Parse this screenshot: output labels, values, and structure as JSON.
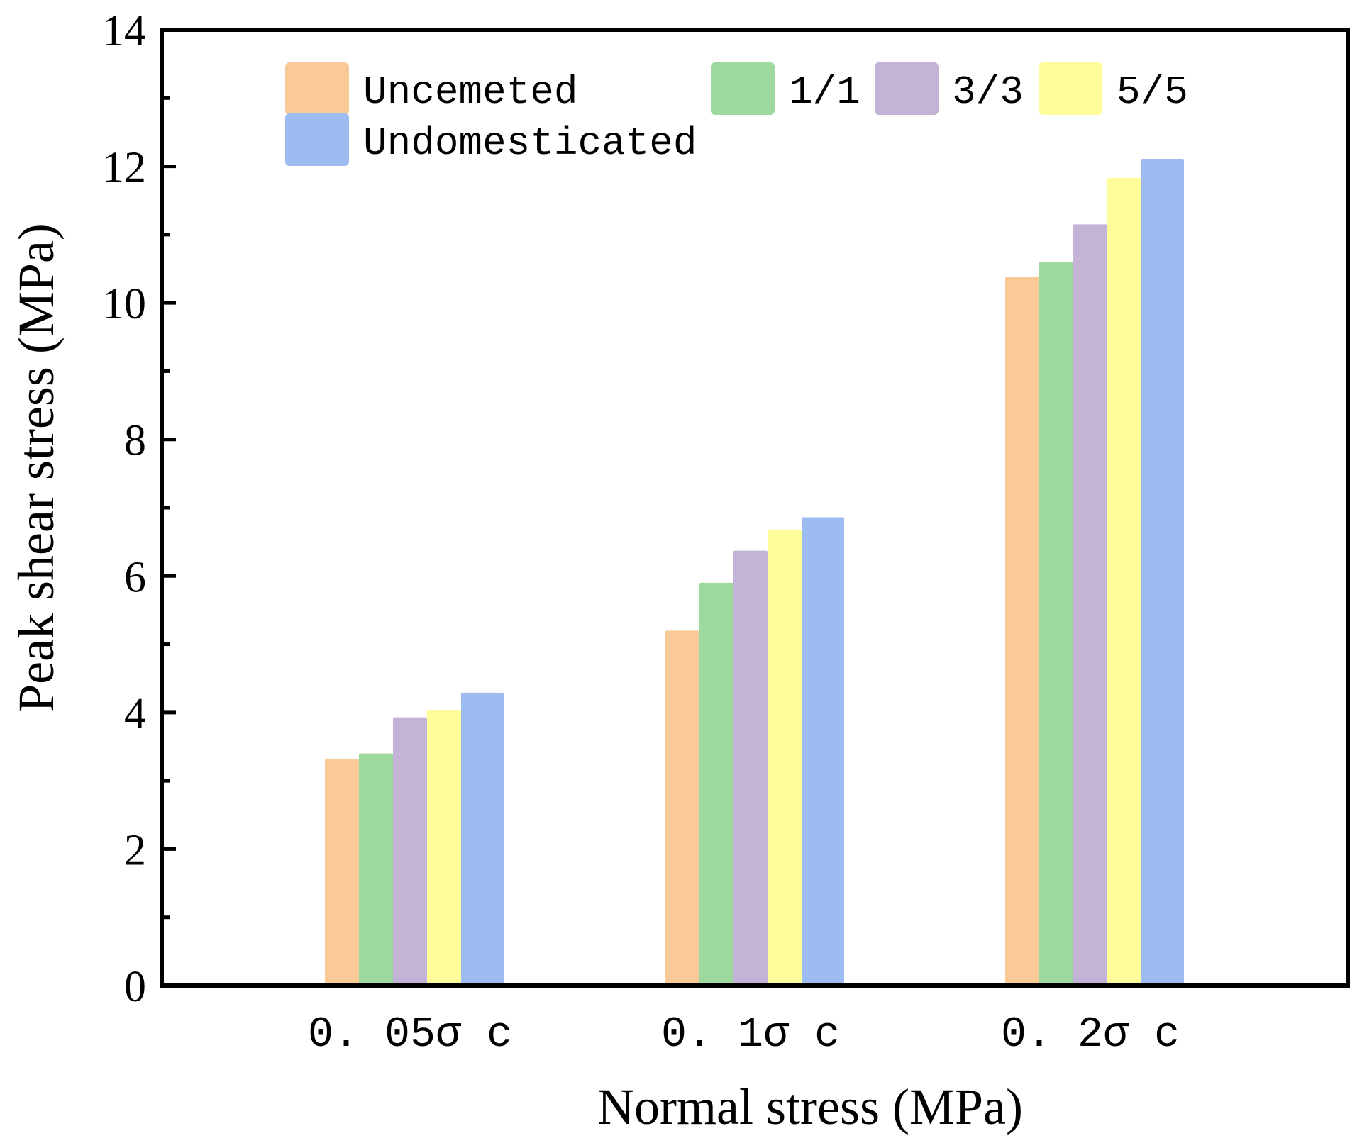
{
  "chart_data": {
    "type": "bar",
    "title": "",
    "xlabel": "Normal stress (MPa)",
    "ylabel": "Peak shear stress (MPa)",
    "ylim": [
      0,
      14
    ],
    "yticks": [
      0,
      2,
      4,
      6,
      8,
      10,
      12,
      14
    ],
    "categories": [
      "0.05σc",
      "0.1σc",
      "0.2σc"
    ],
    "category_labels": [
      "0. 05σ c",
      "0. 1σ c",
      "0. 2σ c"
    ],
    "series": [
      {
        "name": "Uncemeted",
        "color": "#F9C998",
        "values": [
          3.32,
          5.2,
          10.38
        ]
      },
      {
        "name": "1/1",
        "color": "#9DD89C",
        "values": [
          3.4,
          5.9,
          10.6
        ]
      },
      {
        "name": "3/3",
        "color": "#C2B3D7",
        "values": [
          3.93,
          6.37,
          11.15
        ]
      },
      {
        "name": "5/5",
        "color": "#FFFD9A",
        "values": [
          4.04,
          6.68,
          11.83
        ]
      },
      {
        "name": "Undomesticated",
        "color": "#9DBCF2",
        "values": [
          4.29,
          6.86,
          12.11
        ]
      }
    ],
    "legend_position": "top-left",
    "grid": false
  }
}
